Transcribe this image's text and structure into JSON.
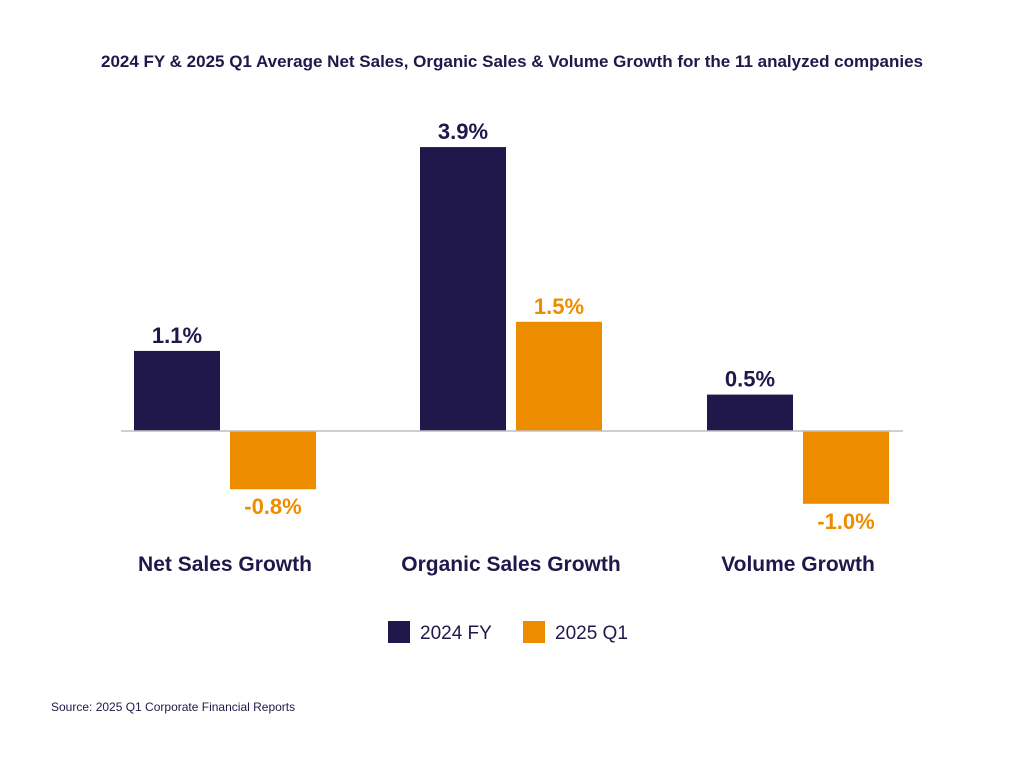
{
  "chart_data": {
    "type": "bar",
    "title": "2024 FY & 2025 Q1 Average Net Sales, Organic Sales & Volume Growth for the 11 analyzed companies",
    "categories": [
      "Net Sales Growth",
      "Organic Sales Growth",
      "Volume Growth"
    ],
    "series": [
      {
        "name": "2024 FY",
        "values": [
          1.1,
          3.9,
          0.5
        ],
        "labels": [
          "1.1%",
          "3.9%",
          "0.5%"
        ],
        "color": "#20184a"
      },
      {
        "name": "2025 Q1",
        "values": [
          -0.8,
          1.5,
          -1.0
        ],
        "labels": [
          "-0.8%",
          "1.5%",
          "-1.0%"
        ],
        "color": "#ee8c00"
      }
    ],
    "ylim": [
      -1.0,
      3.9
    ],
    "grid": false,
    "legend": "bottom-center",
    "xlabel": "",
    "ylabel": ""
  },
  "source": "Source: 2025 Q1 Corporate Financial Reports",
  "colors": {
    "text": "#20184a",
    "axis": "#bfbfbf"
  }
}
